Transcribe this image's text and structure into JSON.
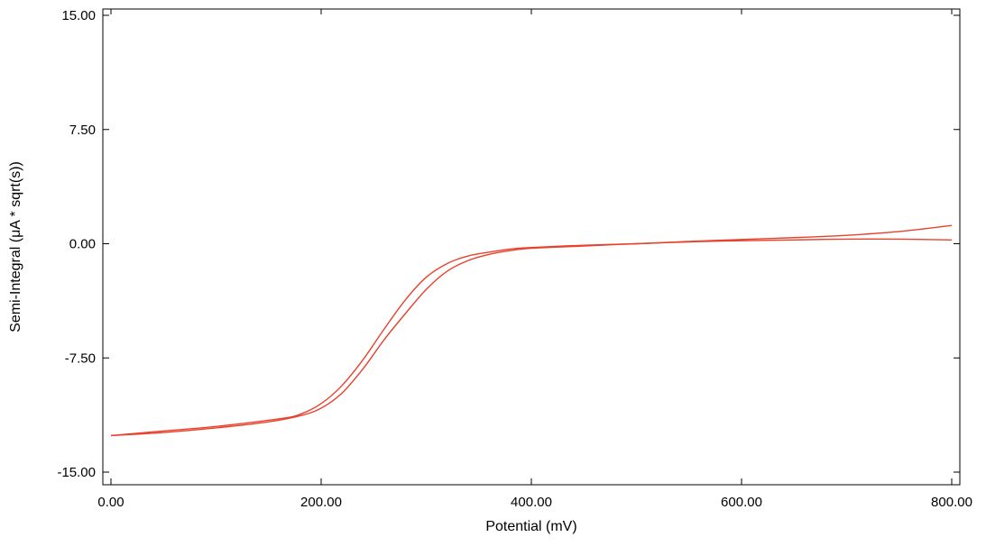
{
  "chart_data": {
    "type": "line",
    "xlabel": "Potential (mV)",
    "ylabel": "Semi-Integral (μA * sqrt(s))",
    "xlim": [
      0,
      800
    ],
    "ylim": [
      -15,
      15
    ],
    "x_ticks": [
      "0.00",
      "200.00",
      "400.00",
      "600.00",
      "800.00"
    ],
    "y_ticks": [
      "15.00",
      "7.50",
      "0.00",
      "-7.50",
      "-15.00"
    ],
    "grid": false,
    "series": [
      {
        "color": "#e8412c",
        "x": [
          0,
          50,
          100,
          150,
          180,
          200,
          220,
          240,
          260,
          280,
          300,
          320,
          340,
          360,
          380,
          400,
          450,
          500,
          550,
          600,
          650,
          700,
          750,
          800
        ],
        "y": [
          -12.6,
          -12.4,
          -12.1,
          -11.7,
          -11.3,
          -10.8,
          -9.8,
          -8.2,
          -6.3,
          -4.6,
          -3.0,
          -1.8,
          -1.1,
          -0.7,
          -0.45,
          -0.3,
          -0.15,
          0.0,
          0.12,
          0.2,
          0.25,
          0.3,
          0.3,
          0.25
        ]
      },
      {
        "color": "#e8412c",
        "x": [
          800,
          750,
          700,
          650,
          600,
          550,
          500,
          450,
          400,
          380,
          360,
          340,
          320,
          300,
          280,
          260,
          240,
          220,
          200,
          180,
          160,
          100,
          50,
          0
        ],
        "y": [
          1.2,
          0.8,
          0.55,
          0.4,
          0.28,
          0.15,
          0.0,
          -0.1,
          -0.25,
          -0.35,
          -0.55,
          -0.8,
          -1.3,
          -2.2,
          -3.7,
          -5.6,
          -7.6,
          -9.3,
          -10.5,
          -11.2,
          -11.5,
          -12.0,
          -12.3,
          -12.6
        ]
      }
    ]
  }
}
